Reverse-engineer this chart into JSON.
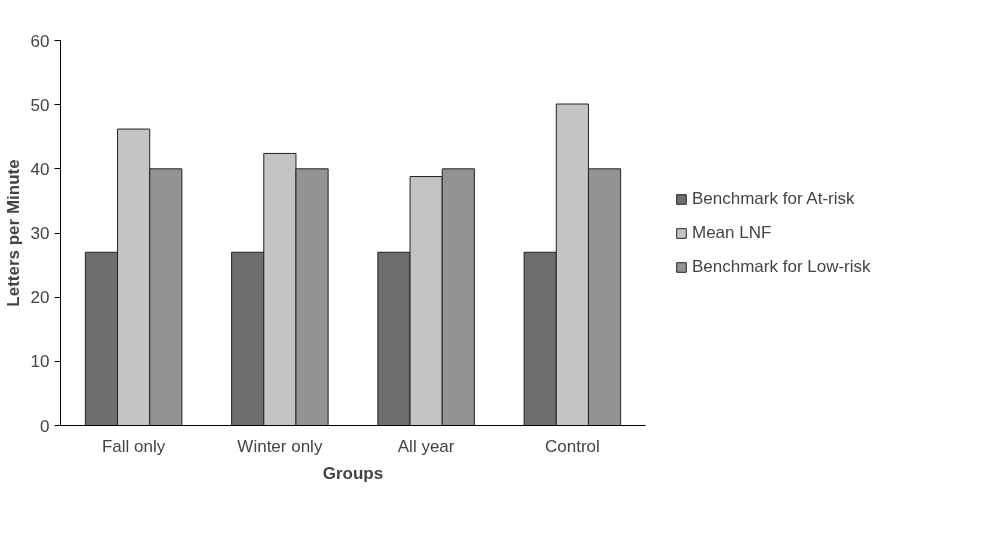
{
  "chart_data": {
    "type": "bar",
    "xlabel": "Groups",
    "ylabel": "Letters per Minute",
    "categories": [
      "Fall only",
      "Winter only",
      "All year",
      "Control"
    ],
    "series": [
      {
        "name": "Benchmark for At-risk",
        "color": "#6e6e6e",
        "values": [
          27,
          27,
          27,
          27
        ]
      },
      {
        "name": "Mean LNF",
        "color": "#c4c4c4",
        "values": [
          46.2,
          42.4,
          38.8,
          50.1
        ]
      },
      {
        "name": "Benchmark for Low-risk",
        "color": "#939393",
        "values": [
          40,
          40,
          40,
          40
        ]
      }
    ],
    "ylim": [
      0,
      60
    ],
    "yticks": [
      0,
      10,
      20,
      30,
      40,
      50,
      60
    ],
    "legend": "right"
  }
}
